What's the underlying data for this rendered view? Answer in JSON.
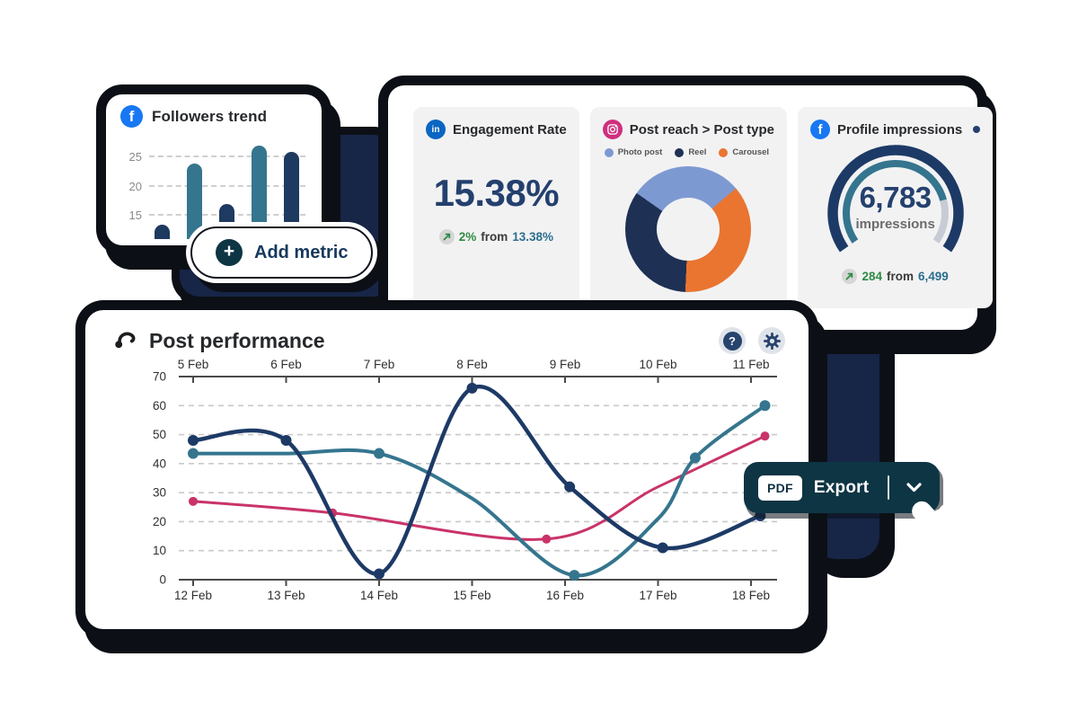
{
  "theme": {
    "ink": "#0c1016",
    "shape_navy": "#172547",
    "navy": "#1d3a66",
    "navy_deep": "#1e3054",
    "teal": "#35758e",
    "pink": "#c93369",
    "photo_blue": "#7d99d2",
    "orange": "#e97531",
    "green": "#2f8b43",
    "teal_text": "#2d6e8e",
    "facebook_blue": "#1877f2",
    "linkedin_blue": "#0a66c2",
    "instagram_pink": "#cf2f7f",
    "card_gray": "#f2f2f3",
    "button_petrol": "#0e3544",
    "axis_gray": "#4a4a4a",
    "grid_gray": "#c9c9c9",
    "gauge_rest_gray": "#c7ccd4"
  },
  "followers": {
    "title": "Followers trend"
  },
  "add_metric": {
    "label": "Add metric",
    "plus_glyph": "+"
  },
  "engagement": {
    "title": "Engagement Rate",
    "value": "15.38%",
    "delta": "2%",
    "from_word": "from",
    "previous": "13.38%"
  },
  "post_reach": {
    "title": "Post reach > Post type"
  },
  "impressions": {
    "title": "Profile impressions",
    "value": "6,783",
    "unit": "impressions",
    "delta": "284",
    "from_word": "from",
    "previous": "6,499"
  },
  "post_performance": {
    "title": "Post performance",
    "help_glyph": "?"
  },
  "export": {
    "badge": "PDF",
    "label": "Export"
  },
  "chart_data": [
    {
      "id": "followers_trend",
      "type": "bar",
      "title": "Followers trend",
      "categories": [
        "",
        "",
        "",
        "",
        ""
      ],
      "values": [
        13.5,
        24,
        17,
        27,
        26
      ],
      "bar_colors": [
        "navy",
        "teal",
        "navy",
        "teal",
        "navy"
      ],
      "yticks": [
        15,
        20,
        25
      ],
      "baseline": 11,
      "ylim": [
        11,
        28
      ],
      "grid": "dashed"
    },
    {
      "id": "post_reach_by_type",
      "type": "pie",
      "title": "Post reach > Post type",
      "legend": [
        "Photo post",
        "Reel",
        "Carousel"
      ],
      "slices": [
        {
          "label": "Photo post",
          "pct": 29,
          "color_key": "photo_blue"
        },
        {
          "label": "Carousel",
          "pct": 37,
          "color_key": "orange"
        },
        {
          "label": "Reel",
          "pct": 34,
          "color_key": "navy_deep"
        }
      ],
      "start_angle_deg": -55,
      "donut_hole_ratio": 0.5
    },
    {
      "id": "profile_impressions",
      "type": "gauge",
      "title": "Profile impressions",
      "value": 6783,
      "display_value": "6,783",
      "unit": "impressions",
      "delta": 284,
      "previous": 6499,
      "fill_pct": 80,
      "sweep_deg": 250
    },
    {
      "id": "post_performance",
      "type": "line",
      "title": "Post performance",
      "x_axis_top": [
        "5 Feb",
        "6 Feb",
        "7 Feb",
        "8 Feb",
        "9 Feb",
        "10 Feb",
        "11 Feb"
      ],
      "x_axis_bottom": [
        "12 Feb",
        "13 Feb",
        "14 Feb",
        "15 Feb",
        "16 Feb",
        "17 Feb",
        "18 Feb"
      ],
      "ylim": [
        0,
        70
      ],
      "ytick_step": 10,
      "grid": "dashed-horizontal",
      "legend": "none",
      "series": [
        {
          "name": "pink",
          "color_key": "pink",
          "width": 3,
          "marker_r": 5,
          "points": [
            [
              12,
              27
            ],
            [
              13.5,
              23
            ],
            [
              15.8,
              14
            ],
            [
              17,
              32
            ],
            [
              18.15,
              49.5
            ]
          ],
          "marker_idx": [
            0,
            1,
            2,
            4
          ]
        },
        {
          "name": "teal",
          "color_key": "teal",
          "width": 4,
          "marker_r": 6,
          "points": [
            [
              12,
              43.5
            ],
            [
              13,
              43.5
            ],
            [
              14,
              43.5
            ],
            [
              15,
              28
            ],
            [
              16.1,
              1.5
            ],
            [
              17,
              21
            ],
            [
              17.4,
              42
            ],
            [
              18.15,
              60
            ]
          ],
          "marker_idx": [
            0,
            2,
            4,
            6,
            7
          ]
        },
        {
          "name": "navy",
          "color_key": "navy",
          "width": 4.5,
          "marker_r": 6,
          "points": [
            [
              12,
              48
            ],
            [
              13,
              48
            ],
            [
              14,
              2
            ],
            [
              15,
              66
            ],
            [
              16.05,
              32
            ],
            [
              17.05,
              11
            ],
            [
              18.1,
              22
            ]
          ],
          "marker_idx": [
            0,
            1,
            2,
            3,
            4,
            5,
            6
          ]
        }
      ]
    }
  ]
}
